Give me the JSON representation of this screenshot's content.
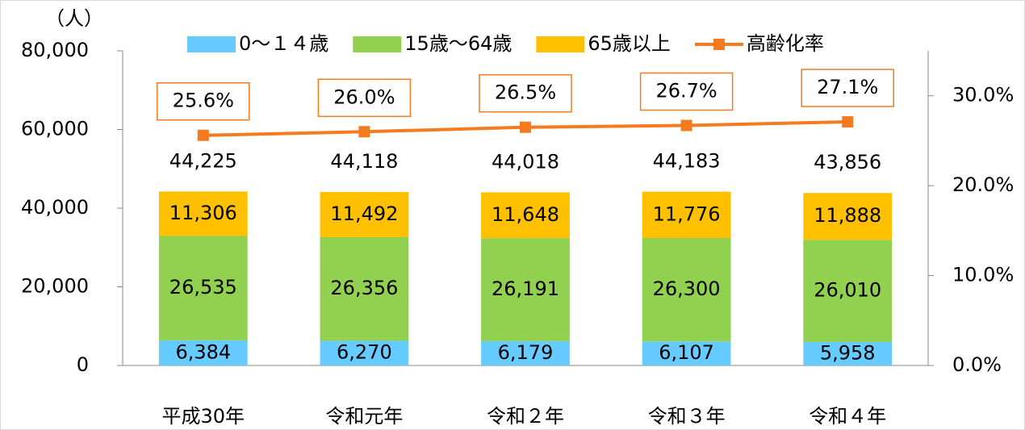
{
  "chart_data": {
    "type": "bar",
    "y_unit": "（人）",
    "categories": [
      "平成30年",
      "令和元年",
      "令和２年",
      "令和３年",
      "令和４年"
    ],
    "series": [
      {
        "name": "0～１４歳",
        "color": "#66ccff",
        "values": [
          6384,
          6270,
          6179,
          6107,
          5958
        ],
        "value_labels": [
          "6,384",
          "6,270",
          "6,179",
          "6,107",
          "5,958"
        ]
      },
      {
        "name": "15歳～64歳",
        "color": "#92d050",
        "values": [
          26535,
          26356,
          26191,
          26300,
          26010
        ],
        "value_labels": [
          "26,535",
          "26,356",
          "26,191",
          "26,300",
          "26,010"
        ]
      },
      {
        "name": "65歳以上",
        "color": "#ffc000",
        "values": [
          11306,
          11492,
          11648,
          11776,
          11888
        ],
        "value_labels": [
          "11,306",
          "11,492",
          "11,648",
          "11,776",
          "11,888"
        ]
      },
      {
        "name": "高齢化率",
        "color": "#f47b20",
        "type": "line",
        "axis": "y2",
        "values": [
          25.6,
          26.0,
          26.5,
          26.7,
          27.1
        ],
        "value_labels": [
          "25.6%",
          "26.0%",
          "26.5%",
          "26.7%",
          "27.1%"
        ]
      }
    ],
    "totals": [
      44225,
      44118,
      44018,
      44183,
      43856
    ],
    "total_labels": [
      "44,225",
      "44,118",
      "44,018",
      "44,183",
      "43,856"
    ],
    "ylim": [
      0,
      80000
    ],
    "yticks": [
      0,
      {
        "value": 20000,
        "label": "20,000"
      },
      {
        "value": 40000,
        "label": "40,000"
      },
      {
        "value": 60000,
        "label": "60,000"
      },
      {
        "value": 80000,
        "label": "80,000"
      }
    ],
    "y2lim": [
      0,
      35
    ],
    "y2ticks": [
      {
        "value": 0,
        "label": "0.0%"
      },
      {
        "value": 10,
        "label": "10.0%"
      },
      {
        "value": 20,
        "label": "20.0%"
      },
      {
        "value": 30,
        "label": "30.0%"
      }
    ]
  }
}
